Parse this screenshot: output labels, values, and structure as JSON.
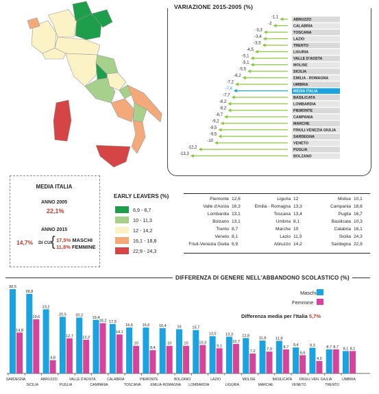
{
  "variation": {
    "title": "VARIAZIONE 2015-2005 (%)",
    "rows": [
      {
        "region": "ABRUZZO",
        "value": -1.1,
        "label": "-1,1"
      },
      {
        "region": "CALABRIA",
        "value": -2,
        "label": "-2"
      },
      {
        "region": "TOSCANA",
        "value": -3.3,
        "label": "-3,3"
      },
      {
        "region": "LAZIO",
        "value": -3.4,
        "label": "-3,4"
      },
      {
        "region": "TRENTO",
        "value": -3.5,
        "label": "-3,5"
      },
      {
        "region": "LIGURIA",
        "value": -4.5,
        "label": "-4,5"
      },
      {
        "region": "VALLE D'AOSTA",
        "value": -5.1,
        "label": "-5,1"
      },
      {
        "region": "MOLISE",
        "value": -5.1,
        "label": "-5,1"
      },
      {
        "region": "SICILIA",
        "value": -5.5,
        "label": "-5,5"
      },
      {
        "region": "EMILIA - ROMAGNA",
        "value": -6.2,
        "label": "-6,2"
      },
      {
        "region": "UMBRIA",
        "value": -7.2,
        "label": "-7,2"
      },
      {
        "region": "MEDIA ITALIA",
        "value": -7.4,
        "label": "-7,4",
        "highlight": true
      },
      {
        "region": "BASILICATA",
        "value": -7.7,
        "label": "-7,7"
      },
      {
        "region": "LOMBARDIA",
        "value": -8.2,
        "label": "-8,2"
      },
      {
        "region": "PIEMONTE",
        "value": -8.2,
        "label": "-8,2"
      },
      {
        "region": "CAMPANIA",
        "value": -8.7,
        "label": "-8,7"
      },
      {
        "region": "MARCHE",
        "value": -9.2,
        "label": "-9,2"
      },
      {
        "region": "FRIULI-VENEZIA GIULIA",
        "value": -9.5,
        "label": "-9,5"
      },
      {
        "region": "SARDEGNA",
        "value": -9.5,
        "label": "-9,5"
      },
      {
        "region": "VENETO",
        "value": -10,
        "label": "-10"
      },
      {
        "region": "PUGLIA",
        "value": -12.2,
        "label": "-12,2"
      },
      {
        "region": "BOLZANO",
        "value": -13.3,
        "label": "-13,3"
      }
    ]
  },
  "media": {
    "title": "MEDIA ITALIA",
    "y2005_label": "ANNO 2005",
    "y2005_value": "22,1%",
    "y2015_label": "ANNO 2015",
    "y2015_total": "14,7%",
    "di_cui": "DI CUI",
    "maschi_value": "17,5%",
    "maschi_label": "MASCHI",
    "femmine_value": "11,8%",
    "femmine_label": "FEMMINE"
  },
  "legend": {
    "title": "EARLY LEAVERS (%)",
    "items": [
      {
        "label": "6,9 - 8,7",
        "color": "#1e9e4a"
      },
      {
        "label": "10 - 11,3",
        "color": "#a8d08d"
      },
      {
        "label": "12 - 14,2",
        "color": "#fbf3c6"
      },
      {
        "label": "16,1 - 18,8",
        "color": "#f4a97a"
      },
      {
        "label": "22,9 - 24,3",
        "color": "#d64545"
      }
    ]
  },
  "table": [
    [
      {
        "r": "Piemonte",
        "v": "12,6"
      },
      {
        "r": "Liguria",
        "v": "12"
      },
      {
        "r": "Molise",
        "v": "10,1"
      }
    ],
    [
      {
        "r": "Valle d'Aosta",
        "v": "16,3"
      },
      {
        "r": "Emilia - Romagna",
        "v": "13,3"
      },
      {
        "r": "Campania",
        "v": "18,8"
      }
    ],
    [
      {
        "r": "Lombardia",
        "v": "13,1"
      },
      {
        "r": "Toscana",
        "v": "13,4"
      },
      {
        "r": "Puglia",
        "v": "16,7"
      }
    ],
    [
      {
        "r": "Bolzano",
        "v": "13,1"
      },
      {
        "r": "Umbria",
        "v": "8,1"
      },
      {
        "r": "Basilicata",
        "v": "10,3"
      }
    ],
    [
      {
        "r": "Trento",
        "v": "8,7"
      },
      {
        "r": "Marche",
        "v": "10"
      },
      {
        "r": "Calabria",
        "v": "16,1"
      }
    ],
    [
      {
        "r": "Veneto",
        "v": "8,1"
      },
      {
        "r": "Lazio",
        "v": "11,3"
      },
      {
        "r": "Sicilia",
        "v": "24,3"
      }
    ],
    [
      {
        "r": "Friuli-Venezia Giulia",
        "v": "6,9"
      },
      {
        "r": "Abruzzo",
        "v": "14,2"
      },
      {
        "r": "Sardegna",
        "v": "22,9"
      }
    ]
  ],
  "chart_data": {
    "type": "bar",
    "title": "DIFFERENZA DI GENERE NELL'ABBANDONO SCOLASTICO (%)",
    "note_label": "Differenza media per l'Italia",
    "note_value": "5,7%",
    "colors": {
      "Maschi": "#1aa3e0",
      "Femmine": "#d6439b"
    },
    "categories": [
      "SARDEGNA",
      "SICILIA",
      "ABRUZZO",
      "PUGLIA",
      "VALLE D'AOSTA",
      "CAMPANIA",
      "CALABRIA",
      "TOSCANA",
      "PIEMONTE",
      "EMILIA-ROMAGNA",
      "BOLZANO",
      "LOMBARDIA",
      "LAZIO",
      "LIGURIA",
      "MOLISE",
      "MARCHE",
      "BASILICATA",
      "VENETO",
      "FRIULI-VEN. GIULIA",
      "TRENTO",
      "UMBRIA"
    ],
    "series": [
      {
        "name": "Maschi",
        "values": [
          30.5,
          28.8,
          23.2,
          20.5,
          20.2,
          19.4,
          17.9,
          16.6,
          16.6,
          16.4,
          16,
          15.7,
          13.5,
          13.3,
          12.8,
          11.9,
          11.8,
          9.4,
          9.3,
          8.7,
          8.1
        ],
        "labels": [
          "30,5",
          "28,8",
          "23,2",
          "20,5",
          "20,2",
          "19,4",
          "17,9",
          "16,6",
          "16,6",
          "16,4",
          "16",
          "15,7",
          "13,5",
          "13,3",
          "12,8",
          "11,9",
          "11,8",
          "9,4",
          "9,3",
          "8,7",
          "8,1"
        ]
      },
      {
        "name": "Femmine",
        "values": [
          14.8,
          19.6,
          4.8,
          12.7,
          12.2,
          18.2,
          14.1,
          10,
          8.4,
          10,
          10,
          10.3,
          9.1,
          10.7,
          7.2,
          7.9,
          8.7,
          6.6,
          4.5,
          8.7,
          8.1
        ],
        "labels": [
          "14,8",
          "19,6",
          "4,8",
          "12,7",
          "12,2",
          "18,2",
          "14,1",
          "10",
          "8,4",
          "10",
          "10",
          "10,3",
          "9,1",
          "10,7",
          "7,2",
          "7,9",
          "8,7",
          "6,6",
          "4,5",
          "8,7",
          "8,1"
        ]
      }
    ],
    "ylim": [
      0,
      32
    ]
  }
}
